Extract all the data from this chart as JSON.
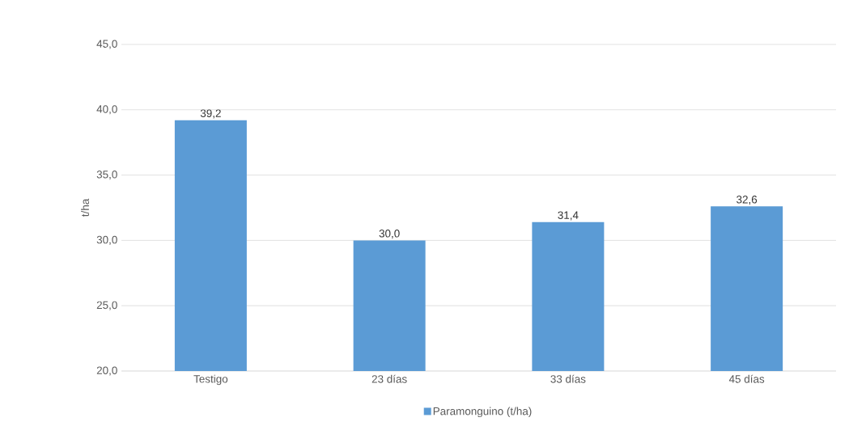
{
  "chart_data": {
    "type": "bar",
    "ylabel": "t/ha",
    "categories": [
      "Testigo",
      "23 días",
      "33 días",
      "45 días"
    ],
    "series": [
      {
        "name": "Paramonguino (t/ha)",
        "color": "#5b9bd5",
        "values": [
          39.2,
          30.0,
          31.4,
          32.6
        ],
        "value_labels": [
          "39,2",
          "30,0",
          "31,4",
          "32,6"
        ]
      }
    ],
    "ylim": [
      20,
      45
    ],
    "yticks": [
      {
        "value": 20,
        "label": "20,0"
      },
      {
        "value": 25,
        "label": "25,0"
      },
      {
        "value": 30,
        "label": "30,0"
      },
      {
        "value": 35,
        "label": "35,0"
      },
      {
        "value": 40,
        "label": "40,0"
      },
      {
        "value": 45,
        "label": "45,0"
      }
    ],
    "grid": "y",
    "legend": "bottom"
  }
}
